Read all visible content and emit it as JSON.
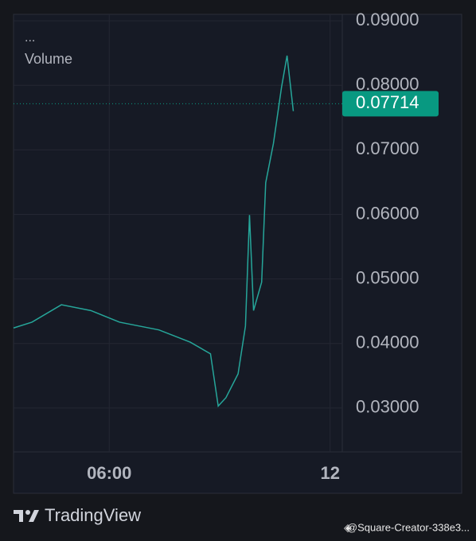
{
  "chart_data": {
    "type": "line",
    "menu": "...",
    "indicator": "Volume",
    "x": [
      3.4,
      3.9,
      4.7,
      5.5,
      6.28,
      7.35,
      8.2,
      8.75,
      8.96,
      9.17,
      9.5,
      9.7,
      9.81,
      9.92,
      10.14,
      10.25,
      10.46,
      10.68,
      10.83,
      11.0
    ],
    "values": [
      0.0424,
      0.0433,
      0.046,
      0.0451,
      0.0433,
      0.0421,
      0.0402,
      0.0384,
      0.0303,
      0.0316,
      0.0353,
      0.0427,
      0.0599,
      0.0451,
      0.0495,
      0.0649,
      0.071,
      0.0797,
      0.0846,
      0.076
    ],
    "color": "#26a69a",
    "xlim": [
      3.4,
      12.33
    ],
    "xticks": [
      {
        "value": 6,
        "label": "06:00"
      },
      {
        "value": 12,
        "label": "12"
      }
    ],
    "ylim": [
      0.0232,
      0.091
    ],
    "yticks": [
      {
        "value": 0.03,
        "label": "0.03000"
      },
      {
        "value": 0.04,
        "label": "0.04000"
      },
      {
        "value": 0.05,
        "label": "0.05000"
      },
      {
        "value": 0.06,
        "label": "0.06000"
      },
      {
        "value": 0.07,
        "label": "0.07000"
      },
      {
        "value": 0.08,
        "label": "0.08000"
      },
      {
        "value": 0.09,
        "label": "0.09000"
      }
    ],
    "grid": true,
    "last_price": 0.07714,
    "last_price_color": "#089981"
  },
  "footer": {
    "brand": "TradingView",
    "credit": "@Square-Creator-338e3..."
  }
}
